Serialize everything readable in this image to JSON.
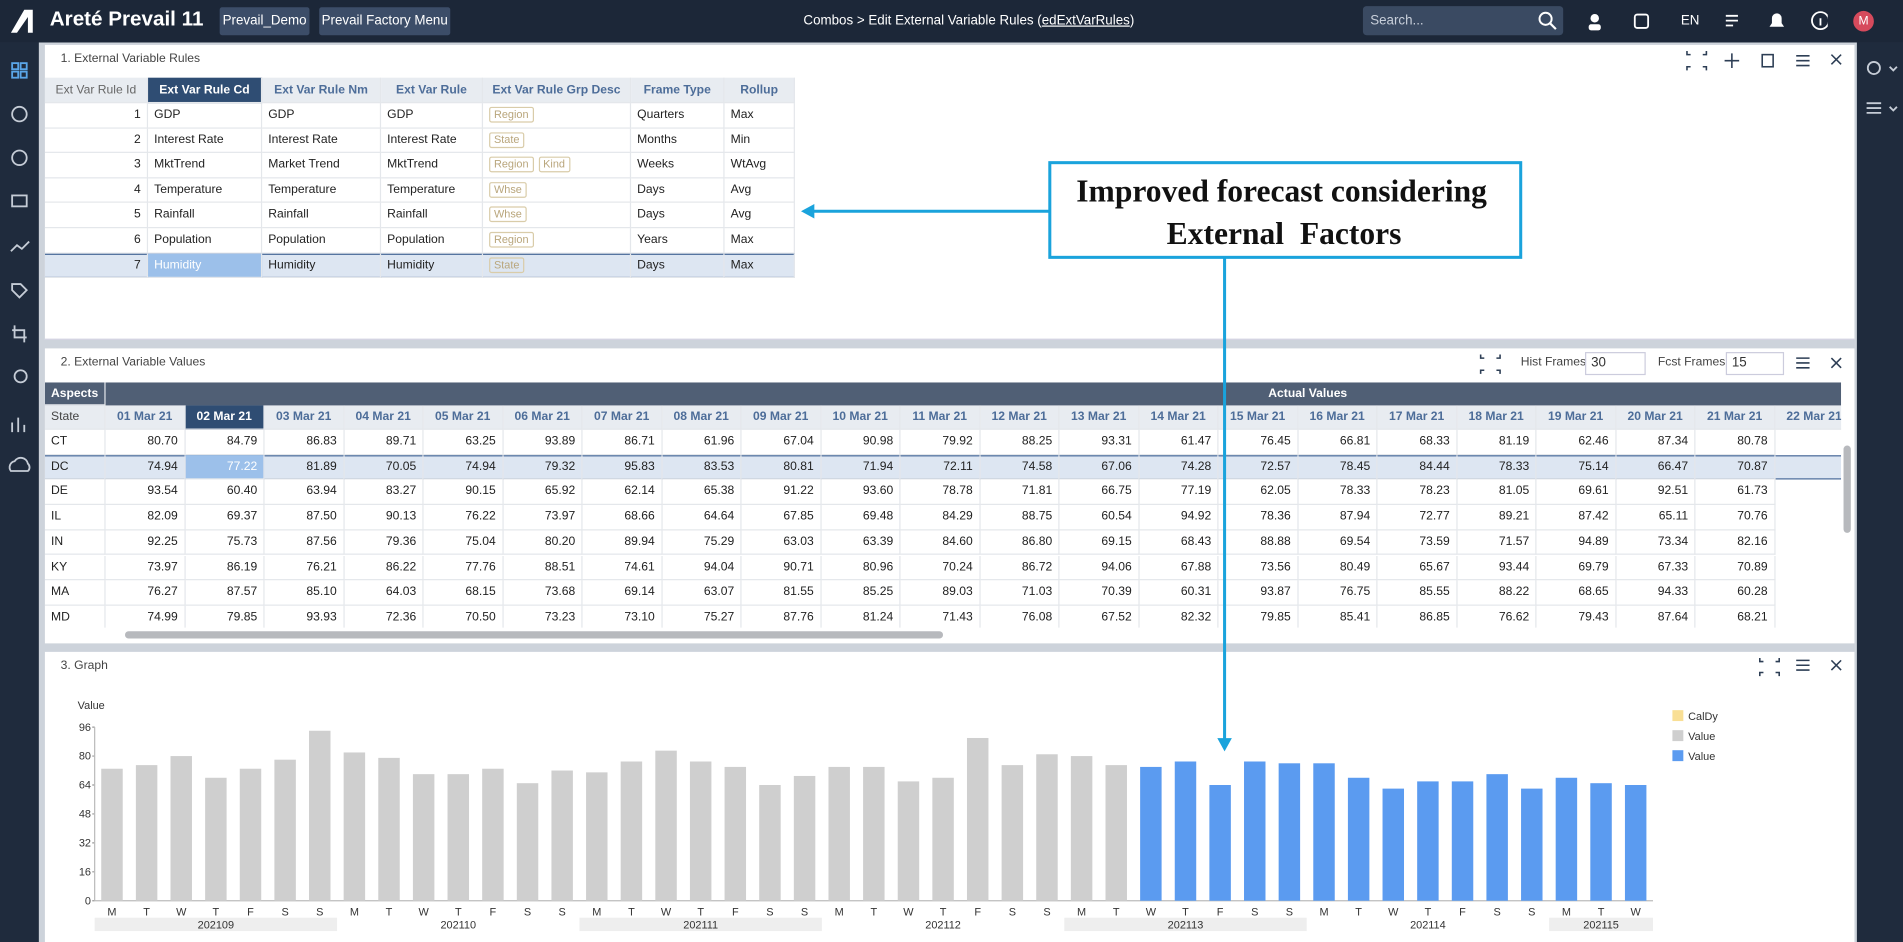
{
  "header": {
    "app_name": "Areté Prevail 11",
    "buttons": [
      "Prevail_Demo",
      "Prevail Factory Menu"
    ],
    "breadcrumb": "Combos > Edit External Variable Rules (",
    "breadcrumb_link": "edExtVarRules",
    "breadcrumb_end": ")",
    "search_placeholder": "Search...",
    "language": "EN",
    "avatar": "M"
  },
  "rules_panel": {
    "title": "1. External Variable Rules",
    "columns": [
      "Ext Var Rule Id",
      "Ext Var Rule Cd",
      "Ext Var Rule Nm",
      "Ext Var Rule",
      "Ext Var Rule Grp Desc",
      "Frame Type",
      "Rollup"
    ],
    "rows": [
      [
        1,
        "GDP",
        "GDP",
        "GDP",
        [
          "Region"
        ],
        "Quarters",
        "Max"
      ],
      [
        2,
        "Interest Rate",
        "Interest Rate",
        "Interest Rate",
        [
          "State"
        ],
        "Months",
        "Min"
      ],
      [
        3,
        "MktTrend",
        "Market Trend",
        "MktTrend",
        [
          "Region",
          "Kind"
        ],
        "Weeks",
        "WtAvg"
      ],
      [
        4,
        "Temperature",
        "Temperature",
        "Temperature",
        [
          "Whse"
        ],
        "Days",
        "Avg"
      ],
      [
        5,
        "Rainfall",
        "Rainfall",
        "Rainfall",
        [
          "Whse"
        ],
        "Days",
        "Avg"
      ],
      [
        6,
        "Population",
        "Population",
        "Population",
        [
          "Region"
        ],
        "Years",
        "Max"
      ],
      [
        7,
        "Humidity",
        "Humidity",
        "Humidity",
        [
          "State"
        ],
        "Days",
        "Max"
      ]
    ]
  },
  "values_panel": {
    "title": "2. External Variable Values",
    "hist_label": "Hist Frames",
    "hist_value": 30,
    "fcst_label": "Fcst Frames",
    "fcst_value": 15,
    "aspects": "Aspects",
    "group": "Actual Values",
    "state_label": "State",
    "dates": [
      "01 Mar 21",
      "02 Mar 21",
      "03 Mar 21",
      "04 Mar 21",
      "05 Mar 21",
      "06 Mar 21",
      "07 Mar 21",
      "08 Mar 21",
      "09 Mar 21",
      "10 Mar 21",
      "11 Mar 21",
      "12 Mar 21",
      "13 Mar 21",
      "14 Mar 21",
      "15 Mar 21",
      "16 Mar 21",
      "17 Mar 21",
      "18 Mar 21",
      "19 Mar 21",
      "20 Mar 21",
      "21 Mar 21",
      "22 Mar 21"
    ],
    "rows": [
      {
        "state": "CT",
        "values": [
          "80.70",
          "84.79",
          "86.83",
          "89.71",
          "63.25",
          "93.89",
          "86.71",
          "61.96",
          "67.04",
          "90.98",
          "79.92",
          "88.25",
          "93.31",
          "61.47",
          "76.45",
          "66.81",
          "68.33",
          "81.19",
          "62.46",
          "87.34",
          "80.78"
        ]
      },
      {
        "state": "DC",
        "values": [
          "74.94",
          "77.22",
          "81.89",
          "70.05",
          "74.94",
          "79.32",
          "95.83",
          "83.53",
          "80.81",
          "71.94",
          "72.11",
          "74.58",
          "67.06",
          "74.28",
          "72.57",
          "78.45",
          "84.44",
          "78.33",
          "75.14",
          "66.47",
          "70.87"
        ]
      },
      {
        "state": "DE",
        "values": [
          "93.54",
          "60.40",
          "63.94",
          "83.27",
          "90.15",
          "65.92",
          "62.14",
          "65.38",
          "91.22",
          "93.60",
          "78.78",
          "71.81",
          "66.75",
          "77.19",
          "62.05",
          "78.33",
          "78.23",
          "81.05",
          "69.61",
          "92.51",
          "61.73"
        ]
      },
      {
        "state": "IL",
        "values": [
          "82.09",
          "69.37",
          "87.50",
          "90.13",
          "76.22",
          "73.97",
          "68.66",
          "64.64",
          "67.85",
          "69.48",
          "84.29",
          "88.75",
          "60.54",
          "94.92",
          "78.36",
          "87.94",
          "72.77",
          "89.21",
          "87.42",
          "65.11",
          "70.76"
        ]
      },
      {
        "state": "IN",
        "values": [
          "92.25",
          "75.73",
          "87.56",
          "79.36",
          "75.04",
          "80.20",
          "89.94",
          "75.29",
          "63.03",
          "63.39",
          "84.60",
          "86.80",
          "69.15",
          "68.43",
          "88.88",
          "69.54",
          "73.59",
          "71.57",
          "94.89",
          "73.34",
          "82.16"
        ]
      },
      {
        "state": "KY",
        "values": [
          "73.97",
          "86.19",
          "76.21",
          "86.22",
          "77.76",
          "88.51",
          "74.61",
          "94.04",
          "90.71",
          "80.96",
          "70.24",
          "86.72",
          "94.06",
          "67.88",
          "73.56",
          "80.49",
          "65.67",
          "93.44",
          "69.79",
          "67.33",
          "70.89"
        ]
      },
      {
        "state": "MA",
        "values": [
          "76.27",
          "87.57",
          "85.10",
          "64.03",
          "68.15",
          "73.68",
          "69.14",
          "63.07",
          "81.55",
          "85.25",
          "89.03",
          "71.03",
          "70.39",
          "60.31",
          "93.87",
          "76.75",
          "85.55",
          "88.22",
          "68.65",
          "94.33",
          "60.28"
        ]
      },
      {
        "state": "MD",
        "values": [
          "74.99",
          "79.85",
          "93.93",
          "72.36",
          "70.50",
          "73.23",
          "73.10",
          "75.27",
          "87.76",
          "81.24",
          "71.43",
          "76.08",
          "67.52",
          "82.32",
          "79.85",
          "85.41",
          "86.85",
          "76.62",
          "79.43",
          "87.64",
          "68.21"
        ]
      }
    ]
  },
  "graph_panel": {
    "title": "3. Graph"
  },
  "chart_data": {
    "type": "bar",
    "y_label": "Value",
    "categories": [
      "M",
      "T",
      "W",
      "T",
      "F",
      "S",
      "S",
      "M",
      "T",
      "W",
      "T",
      "F",
      "S",
      "S",
      "M",
      "T",
      "W",
      "T",
      "F",
      "S",
      "S",
      "M",
      "T",
      "W",
      "T",
      "F",
      "S",
      "S",
      "M",
      "T",
      "W",
      "T",
      "F",
      "S",
      "S",
      "M",
      "T",
      "W",
      "T",
      "F",
      "S",
      "S",
      "M",
      "T",
      "W"
    ],
    "week_groups": [
      "202109",
      "202110",
      "202111",
      "202112",
      "202113",
      "202114",
      "202115"
    ],
    "ylim": [
      0,
      96
    ],
    "yticks": [
      0,
      16,
      32,
      48,
      64,
      80,
      96
    ],
    "legend": "top-right",
    "series": [
      {
        "name": "CalDy",
        "color": "#f9df95",
        "values": [
          null,
          null,
          null,
          null,
          null,
          null,
          null,
          null,
          null,
          null,
          null,
          null,
          null,
          null,
          null,
          null,
          null,
          null,
          null,
          null,
          null,
          null,
          null,
          null,
          null,
          null,
          null,
          null,
          null,
          null,
          null,
          null,
          null,
          null,
          null,
          null,
          null,
          null,
          null,
          null,
          null,
          null,
          null,
          null,
          null
        ]
      },
      {
        "name": "Value",
        "color": "#cfcfcf",
        "values": [
          73,
          75,
          80,
          68,
          73,
          78,
          94,
          82,
          79,
          70,
          70,
          73,
          65,
          72,
          71,
          77,
          83,
          77,
          74,
          64,
          69,
          74,
          74,
          66,
          68,
          90,
          75,
          81,
          80,
          75,
          null,
          null,
          null,
          null,
          null,
          null,
          null,
          null,
          null,
          null,
          null,
          null,
          null,
          null,
          null
        ]
      },
      {
        "name": "Value",
        "color": "#5b9bf0",
        "values": [
          null,
          null,
          null,
          null,
          null,
          null,
          null,
          null,
          null,
          null,
          null,
          null,
          null,
          null,
          null,
          null,
          null,
          null,
          null,
          null,
          null,
          null,
          null,
          null,
          null,
          null,
          null,
          null,
          null,
          null,
          74,
          77,
          64,
          77,
          76,
          76,
          68,
          62,
          66,
          66,
          70,
          62,
          68,
          65,
          64
        ]
      }
    ]
  },
  "callout": {
    "lines": [
      "Improved forecast considering",
      "External  Factors"
    ]
  }
}
